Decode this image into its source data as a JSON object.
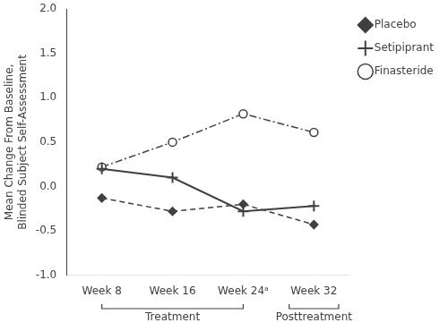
{
  "chart_data": {
    "type": "line",
    "categories": [
      "Week 8",
      "Week 16",
      "Week 24ᵃ",
      "Week 32"
    ],
    "series": [
      {
        "name": "Placebo",
        "values": [
          -0.13,
          -0.28,
          -0.2,
          -0.43
        ],
        "marker": "diamond",
        "line_style": "dashed"
      },
      {
        "name": "Setipiprant",
        "values": [
          0.2,
          0.1,
          -0.28,
          -0.22
        ],
        "marker": "plus",
        "line_style": "solid"
      },
      {
        "name": "Finasteride",
        "values": [
          0.22,
          0.5,
          0.82,
          0.61
        ],
        "marker": "open_circle",
        "line_style": "dashdot"
      }
    ],
    "color": "#404040",
    "y_label": "Mean Change From Baseline,\nBlinded Subject Self-Assessment",
    "ylim": [
      -1.0,
      2.0
    ],
    "yticks": [
      {
        "value": -1,
        "label": "-1.0"
      },
      -0.5,
      {
        "value": 0,
        "label": "0.0"
      },
      0.5,
      {
        "value": 1,
        "label": "1.0"
      },
      1.5,
      {
        "value": 2,
        "label": "2.0"
      }
    ],
    "grid": false,
    "legend": "right",
    "annotations": [
      {
        "text": "Treatment",
        "categories": [
          "Week 8",
          "Week 24ᵃ"
        ]
      },
      {
        "text": "Posttreatment",
        "categories": [
          "Week 32"
        ]
      }
    ]
  }
}
